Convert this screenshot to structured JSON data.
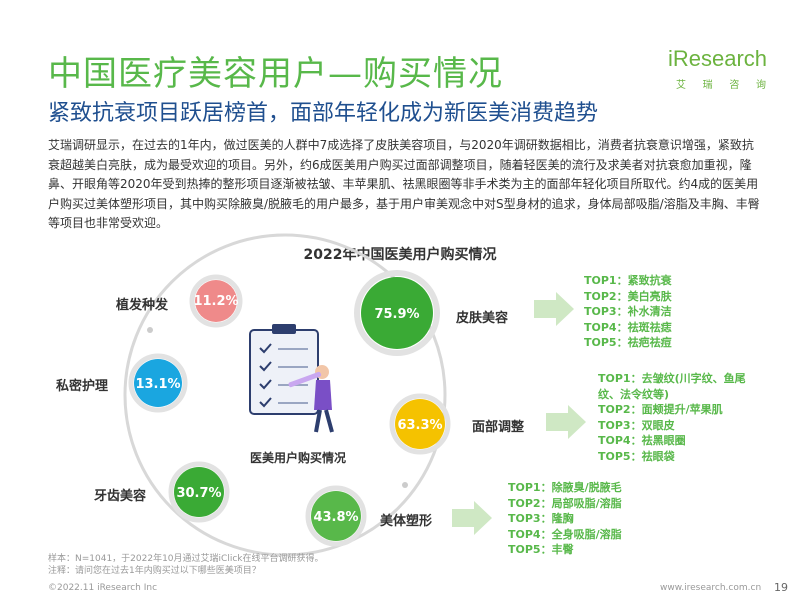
{
  "header": {
    "title": "中国医疗美容用户—购买情况",
    "subtitle": "紧致抗衰项目跃居榜首，面部年轻化成为新医美消费趋势",
    "logo": {
      "word_i": "i",
      "word_rest": "Research",
      "sub": [
        "艾",
        "瑞",
        "咨",
        "询"
      ]
    }
  },
  "intro": "艾瑞调研显示，在过去的1年内，做过医美的人群中7成选择了皮肤美容项目，与2020年调研数据相比，消费者抗衰意识增强，紧致抗衰超越美白亮肤，成为最受欢迎的项目。另外，约6成医美用户购买过面部调整项目，随着轻医美的流行及求美者对抗衰愈加重视，隆鼻、开眼角等2020年受到热捧的整形项目逐渐被祛皱、丰苹果肌、祛黑眼圈等非手术类为主的面部年轻化项目所取代。约4成的医美用户购买过美体塑形项目，其中购买除腋臭/脱腋毛的用户最多，基于用户审美观念中对S型身材的追求，身体局部吸脂/溶脂及丰胸、丰臀等项目也非常受欢迎。",
  "chart_data": {
    "type": "diagram",
    "title": "2022年中国医美用户购买情况",
    "center_label": "医美用户购买情况",
    "categories": [
      {
        "name": "皮肤美容",
        "value": "75.9%",
        "color": "#3aaa35",
        "tops": [
          "TOP1：紧致抗衰",
          "TOP2：美白亮肤",
          "TOP3：补水清洁",
          "TOP4：祛斑祛痣",
          "TOP5：祛疤祛痘"
        ]
      },
      {
        "name": "面部调整",
        "value": "63.3%",
        "color": "#f5c200",
        "tops": [
          "TOP1：去皱纹(川字纹、鱼尾",
          "纹、法令纹等)",
          "TOP2：面颊提升/苹果肌",
          "TOP3：双眼皮",
          "TOP4：祛黑眼圈",
          "TOP5：祛眼袋"
        ]
      },
      {
        "name": "美体塑形",
        "value": "43.8%",
        "color": "#58b84a",
        "tops": [
          "TOP1：除腋臭/脱腋毛",
          "TOP2：局部吸脂/溶脂",
          "TOP3：隆胸",
          "TOP4：全身吸脂/溶脂",
          "TOP5：丰臀"
        ]
      },
      {
        "name": "牙齿美容",
        "value": "30.7%",
        "color": "#3aaa35"
      },
      {
        "name": "私密护理",
        "value": "13.1%",
        "color": "#1aa6e0"
      },
      {
        "name": "植发种发",
        "value": "11.2%",
        "color": "#ef8a8a"
      }
    ]
  },
  "notes": [
    "样本：N=1041，于2022年10月通过艾瑞iClick在线平台调研获得。",
    "注释：请问您在过去1年内购买过以下哪些医美项目？"
  ],
  "footer": {
    "copyright": "©2022.11 iResearch Inc",
    "site": "www.iresearch.com.cn",
    "page": "19"
  },
  "colors": {
    "title_green": "#58b84a",
    "subtitle_blue": "#1f4f8f",
    "arrow_green": "#cfe8c4",
    "orbit_gray": "#d8d8d8"
  }
}
